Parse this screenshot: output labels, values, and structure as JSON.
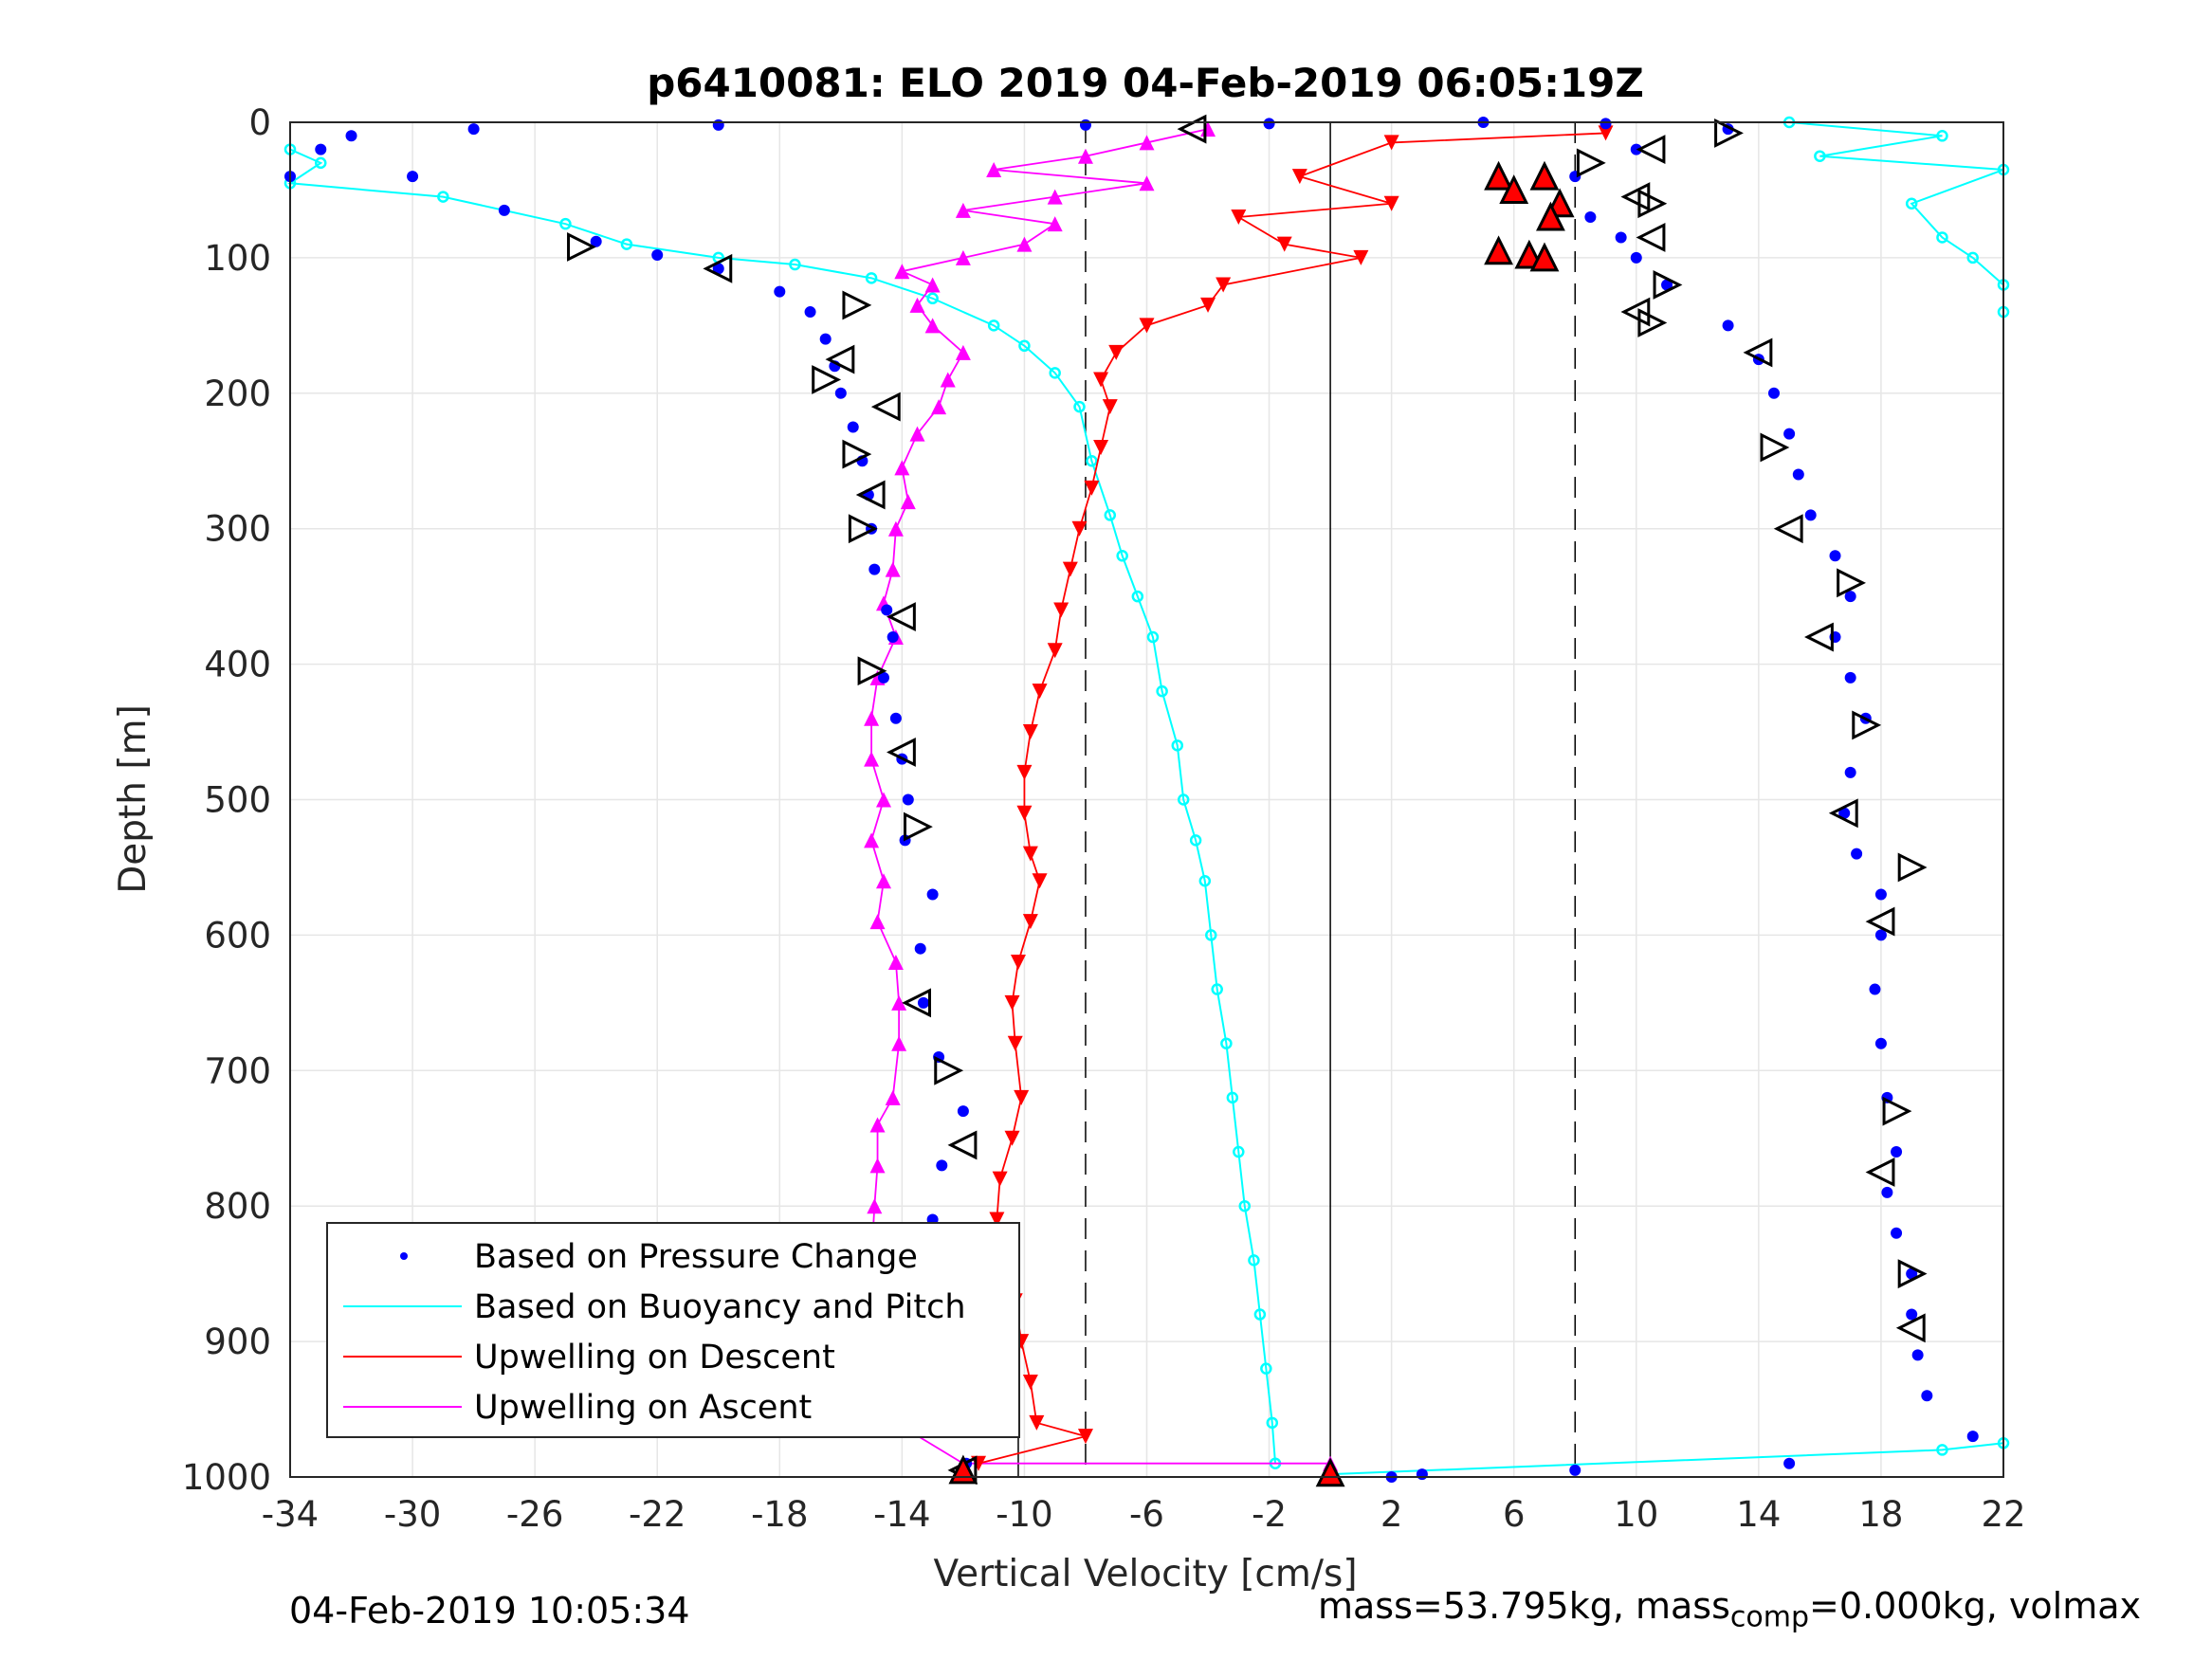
{
  "chart_data": {
    "type": "scatter",
    "title": "p6410081: ELO 2019 04-Feb-2019 06:05:19Z",
    "xlabel": "Vertical Velocity [cm/s]",
    "ylabel": "Depth [m]",
    "xlim": [
      -34,
      22
    ],
    "ylim": [
      0,
      1000
    ],
    "y_reversed": true,
    "grid": true,
    "xticks": [
      "-34",
      "-30",
      "-26",
      "-22",
      "-18",
      "-14",
      "-10",
      "-6",
      "-2",
      "2",
      "6",
      "10",
      "14",
      "18",
      "22"
    ],
    "yticks": [
      "0",
      "100",
      "200",
      "300",
      "400",
      "500",
      "600",
      "700",
      "800",
      "900",
      "1000"
    ],
    "legend_position": "bottom-left",
    "reference_lines": {
      "solid_x": 0,
      "dashed_x": [
        -8,
        8
      ],
      "descent_mean_x": -10.2
    },
    "series": [
      {
        "name": "Based on Pressure Change",
        "marker": "dot",
        "color": "#0000ff",
        "descent": [
          [
            -35,
            40
          ],
          [
            -33,
            20
          ],
          [
            -32,
            10
          ],
          [
            -28,
            5
          ],
          [
            -30,
            40
          ],
          [
            -27,
            65
          ],
          [
            -24,
            88
          ],
          [
            -22,
            98
          ],
          [
            -20,
            108
          ],
          [
            -18,
            125
          ],
          [
            -17,
            140
          ],
          [
            -16.5,
            160
          ],
          [
            -16.2,
            180
          ],
          [
            -16,
            200
          ],
          [
            -15.6,
            225
          ],
          [
            -15.3,
            250
          ],
          [
            -15.1,
            275
          ],
          [
            -15,
            300
          ],
          [
            -14.9,
            330
          ],
          [
            -14.5,
            360
          ],
          [
            -14.3,
            380
          ],
          [
            -14.6,
            410
          ],
          [
            -14.2,
            440
          ],
          [
            -14,
            470
          ],
          [
            -13.8,
            500
          ],
          [
            -13.9,
            530
          ],
          [
            -13,
            570
          ],
          [
            -13.4,
            610
          ],
          [
            -13.3,
            650
          ],
          [
            -12.8,
            690
          ],
          [
            -12,
            730
          ],
          [
            -12.7,
            770
          ],
          [
            -13,
            810
          ],
          [
            -12.5,
            850
          ],
          [
            -11.9,
            890
          ],
          [
            -11.5,
            930
          ],
          [
            -11.8,
            960
          ],
          [
            -11.9,
            990
          ]
        ],
        "ascent": [
          [
            13,
            5
          ],
          [
            10,
            20
          ],
          [
            8,
            40
          ],
          [
            8.5,
            70
          ],
          [
            9.5,
            85
          ],
          [
            10,
            100
          ],
          [
            11,
            120
          ],
          [
            13,
            150
          ],
          [
            14,
            175
          ],
          [
            14.5,
            200
          ],
          [
            15,
            230
          ],
          [
            15.3,
            260
          ],
          [
            15.7,
            290
          ],
          [
            16.5,
            320
          ],
          [
            17,
            350
          ],
          [
            16.5,
            380
          ],
          [
            17,
            410
          ],
          [
            17.5,
            440
          ],
          [
            17,
            480
          ],
          [
            16.8,
            510
          ],
          [
            17.2,
            540
          ],
          [
            18,
            570
          ],
          [
            18,
            600
          ],
          [
            17.8,
            640
          ],
          [
            18,
            680
          ],
          [
            18.2,
            720
          ],
          [
            18.5,
            760
          ],
          [
            18.2,
            790
          ],
          [
            18.5,
            820
          ],
          [
            19,
            850
          ],
          [
            19,
            880
          ],
          [
            19.2,
            910
          ],
          [
            19.5,
            940
          ],
          [
            21,
            970
          ],
          [
            15,
            990
          ],
          [
            8,
            995
          ],
          [
            3,
            998
          ]
        ],
        "surface": [
          [
            -20,
            2
          ],
          [
            -8,
            2
          ],
          [
            -2,
            1
          ],
          [
            5,
            0
          ],
          [
            9,
            1
          ],
          [
            2,
            1000
          ]
        ]
      },
      {
        "name": "Based on Buoyancy and Pitch",
        "marker": "line-circle",
        "color": "#00ffff",
        "descent": [
          [
            -34,
            20
          ],
          [
            -33,
            30
          ],
          [
            -34,
            45
          ],
          [
            -29,
            55
          ],
          [
            -25,
            75
          ],
          [
            -23,
            90
          ],
          [
            -20,
            100
          ],
          [
            -17.5,
            105
          ],
          [
            -15,
            115
          ],
          [
            -13,
            130
          ],
          [
            -11,
            150
          ],
          [
            -10,
            165
          ],
          [
            -9,
            185
          ],
          [
            -8.2,
            210
          ],
          [
            -7.8,
            250
          ],
          [
            -7.2,
            290
          ],
          [
            -6.8,
            320
          ],
          [
            -6.3,
            350
          ],
          [
            -5.8,
            380
          ],
          [
            -5.5,
            420
          ],
          [
            -5,
            460
          ],
          [
            -4.8,
            500
          ],
          [
            -4.4,
            530
          ],
          [
            -4.1,
            560
          ],
          [
            -3.9,
            600
          ],
          [
            -3.7,
            640
          ],
          [
            -3.4,
            680
          ],
          [
            -3.2,
            720
          ],
          [
            -3.0,
            760
          ],
          [
            -2.8,
            800
          ],
          [
            -2.5,
            840
          ],
          [
            -2.3,
            880
          ],
          [
            -2.1,
            920
          ],
          [
            -1.9,
            960
          ],
          [
            -1.8,
            990
          ]
        ],
        "ascent": [
          [
            0,
            998
          ],
          [
            20,
            980
          ],
          [
            22,
            975
          ]
        ],
        "surface": [
          [
            15,
            0
          ],
          [
            20,
            10
          ],
          [
            16,
            25
          ],
          [
            22,
            35
          ],
          [
            19,
            60
          ],
          [
            20,
            85
          ],
          [
            21,
            100
          ],
          [
            22,
            120
          ],
          [
            22,
            140
          ]
        ]
      },
      {
        "name": "Upwelling on Descent",
        "marker": "triangle-down",
        "color": "#ff0000",
        "values": [
          [
            9,
            8
          ],
          [
            2,
            15
          ],
          [
            -1,
            40
          ],
          [
            2,
            60
          ],
          [
            -3,
            70
          ],
          [
            -1.5,
            90
          ],
          [
            1,
            100
          ],
          [
            -3.5,
            120
          ],
          [
            -4,
            135
          ],
          [
            -6,
            150
          ],
          [
            -7,
            170
          ],
          [
            -7.5,
            190
          ],
          [
            -7.2,
            210
          ],
          [
            -7.5,
            240
          ],
          [
            -7.8,
            270
          ],
          [
            -8.2,
            300
          ],
          [
            -8.5,
            330
          ],
          [
            -8.8,
            360
          ],
          [
            -9,
            390
          ],
          [
            -9.5,
            420
          ],
          [
            -9.8,
            450
          ],
          [
            -10,
            480
          ],
          [
            -10,
            510
          ],
          [
            -9.8,
            540
          ],
          [
            -9.5,
            560
          ],
          [
            -9.8,
            590
          ],
          [
            -10.2,
            620
          ],
          [
            -10.4,
            650
          ],
          [
            -10.3,
            680
          ],
          [
            -10.1,
            720
          ],
          [
            -10.4,
            750
          ],
          [
            -10.8,
            780
          ],
          [
            -10.9,
            810
          ],
          [
            -10.8,
            840
          ],
          [
            -10.3,
            870
          ],
          [
            -10.1,
            900
          ],
          [
            -9.8,
            930
          ],
          [
            -9.6,
            960
          ],
          [
            -8,
            970
          ],
          [
            -11.5,
            990
          ]
        ]
      },
      {
        "name": "Upwelling on Ascent",
        "marker": "triangle-up",
        "color": "#ff00ff",
        "values": [
          [
            -4,
            5
          ],
          [
            -6,
            15
          ],
          [
            -8,
            25
          ],
          [
            -11,
            35
          ],
          [
            -6,
            45
          ],
          [
            -9,
            55
          ],
          [
            -12,
            65
          ],
          [
            -9,
            75
          ],
          [
            -10,
            90
          ],
          [
            -12,
            100
          ],
          [
            -14,
            110
          ],
          [
            -13,
            120
          ],
          [
            -13.5,
            135
          ],
          [
            -13,
            150
          ],
          [
            -12,
            170
          ],
          [
            -12.5,
            190
          ],
          [
            -12.8,
            210
          ],
          [
            -13.5,
            230
          ],
          [
            -14,
            255
          ],
          [
            -13.8,
            280
          ],
          [
            -14.2,
            300
          ],
          [
            -14.3,
            330
          ],
          [
            -14.6,
            355
          ],
          [
            -14.2,
            380
          ],
          [
            -14.8,
            410
          ],
          [
            -15,
            440
          ],
          [
            -15,
            470
          ],
          [
            -14.6,
            500
          ],
          [
            -15,
            530
          ],
          [
            -14.6,
            560
          ],
          [
            -14.8,
            590
          ],
          [
            -14.2,
            620
          ],
          [
            -14.1,
            650
          ],
          [
            -14.1,
            680
          ],
          [
            -14.3,
            720
          ],
          [
            -14.8,
            740
          ],
          [
            -14.8,
            770
          ],
          [
            -14.9,
            800
          ],
          [
            -15,
            840
          ],
          [
            -15.5,
            870
          ],
          [
            -15,
            900
          ],
          [
            -14.9,
            930
          ],
          [
            -14.2,
            960
          ],
          [
            -12,
            990
          ],
          [
            0,
            990
          ]
        ]
      }
    ],
    "glider_markers": {
      "descent_x": [
        -4.5,
        -24.5,
        -20,
        -15.5,
        -16,
        -16.5,
        -14.5,
        -15.5,
        -15,
        -15.3,
        -14,
        -15,
        -14,
        -13.5,
        -13.5,
        -12.5,
        -12,
        -12,
        -12
      ],
      "descent_y": [
        5,
        92,
        108,
        135,
        175,
        190,
        210,
        245,
        275,
        300,
        365,
        405,
        465,
        520,
        650,
        700,
        755,
        955,
        995
      ],
      "ascent_x": [
        13,
        10.5,
        8.5,
        10,
        10.5,
        10.5,
        11,
        10,
        10.5,
        14,
        14.5,
        15,
        17,
        16,
        17.5,
        16.8,
        19,
        18,
        18.5,
        18,
        19,
        19
      ],
      "ascent_y": [
        8,
        20,
        30,
        55,
        60,
        85,
        120,
        140,
        148,
        170,
        240,
        300,
        340,
        380,
        445,
        510,
        550,
        590,
        730,
        775,
        850,
        890
      ],
      "ascent_red_x": [
        5.5,
        6,
        7,
        7.5,
        7.2,
        5.5,
        6.5,
        7,
        0,
        -12
      ],
      "ascent_red_y": [
        40,
        50,
        40,
        60,
        70,
        95,
        98,
        100,
        997,
        995
      ]
    }
  },
  "footer": {
    "timestamp": "04-Feb-2019 10:05:34",
    "mass_prefix": "mass=53.795kg, mass",
    "mass_sub": "comp",
    "mass_suffix": "=0.000kg, volmax"
  }
}
